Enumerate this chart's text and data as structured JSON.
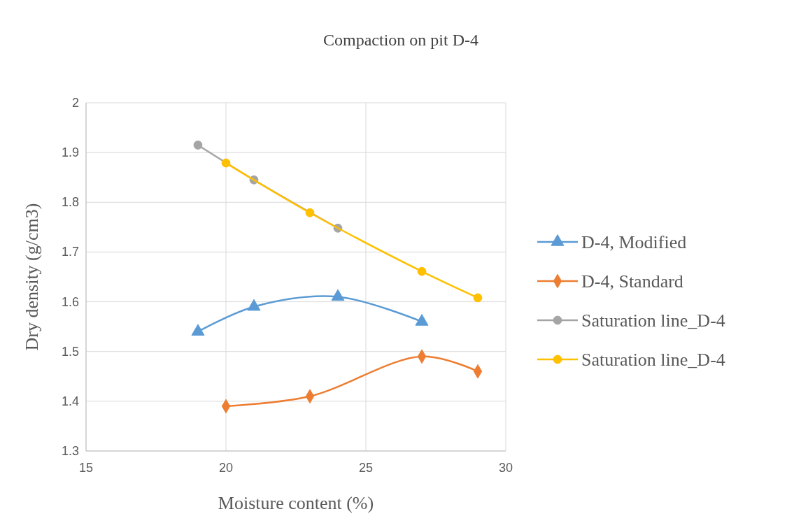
{
  "chart_data": {
    "type": "line",
    "title": "Compaction on pit D-4",
    "xlabel": "Moisture content (%)",
    "ylabel": "Dry density (g/cm3)",
    "xlim": [
      15,
      30
    ],
    "xticks": [
      15,
      20,
      25,
      30
    ],
    "ylim": [
      1.3,
      2
    ],
    "yticks": [
      {
        "value": 1.3,
        "label": "1.3"
      },
      {
        "value": 1.4,
        "label": "1.4"
      },
      {
        "value": 1.5,
        "label": "1.5"
      },
      {
        "value": 1.6,
        "label": "1.6"
      },
      {
        "value": 1.7,
        "label": "1.7"
      },
      {
        "value": 1.8,
        "label": "1.8"
      },
      {
        "value": 1.9,
        "label": "1.9"
      },
      {
        "value": 2,
        "label": "2"
      }
    ],
    "grid": true,
    "legend": "right",
    "series": [
      {
        "name": "D-4, Modified",
        "color": "#5b9bd5",
        "marker": "triangle",
        "x": [
          19,
          21,
          24,
          27
        ],
        "values": [
          1.54,
          1.59,
          1.61,
          1.56
        ]
      },
      {
        "name": "D-4, Standard",
        "color": "#ed7d31",
        "marker": "diamond",
        "x": [
          20,
          23,
          27,
          29
        ],
        "values": [
          1.39,
          1.41,
          1.49,
          1.46
        ]
      },
      {
        "name": "Saturation line_D-4",
        "color": "#a5a5a5",
        "marker": "circle",
        "x": [
          19,
          21,
          24
        ],
        "values": [
          1.915,
          1.845,
          1.748
        ]
      },
      {
        "name": "Saturation line_D-4",
        "color": "#ffc000",
        "marker": "circle",
        "x": [
          20,
          23,
          27,
          29
        ],
        "values": [
          1.879,
          1.779,
          1.661,
          1.608
        ]
      }
    ]
  }
}
